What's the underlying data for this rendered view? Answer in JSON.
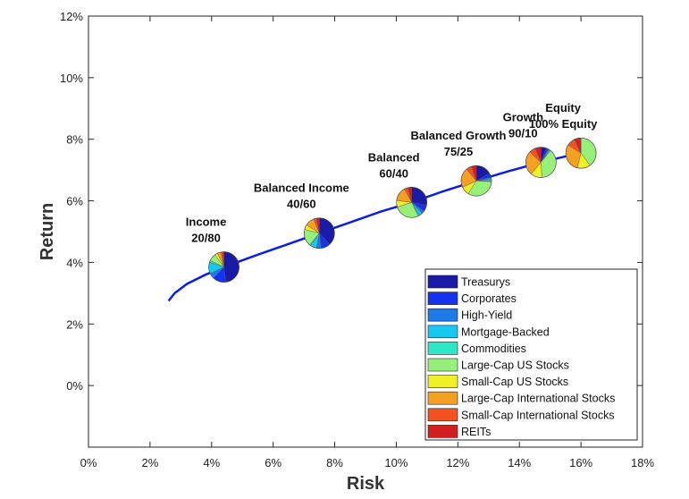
{
  "chart_data": {
    "type": "scatter",
    "xlabel": "Risk",
    "ylabel": "Return",
    "xlim": [
      0,
      18
    ],
    "ylim": [
      -2,
      12
    ],
    "x_ticks": [
      "0%",
      "2%",
      "4%",
      "6%",
      "8%",
      "10%",
      "12%",
      "14%",
      "16%",
      "18%"
    ],
    "y_ticks": [
      "0%",
      "2%",
      "4%",
      "6%",
      "8%",
      "10%",
      "12%"
    ],
    "grid": false,
    "legend_position": "bottom-right",
    "frontier": {
      "color": "#0a1ee6",
      "x": [
        2.6,
        2.8,
        3.2,
        3.8,
        4.4,
        5.5,
        6.5,
        7.5,
        8.5,
        9.5,
        10.5,
        11.5,
        12.6,
        13.6,
        14.7,
        15.4,
        16.0
      ],
      "y": [
        2.75,
        3.0,
        3.3,
        3.6,
        3.85,
        4.25,
        4.6,
        4.95,
        5.3,
        5.65,
        5.95,
        6.3,
        6.65,
        6.95,
        7.25,
        7.42,
        7.55
      ]
    },
    "categories": [
      "Treasurys",
      "Corporates",
      "High-Yield",
      "Mortgage-Backed",
      "Commodities",
      "Large-Cap US Stocks",
      "Small-Cap US Stocks",
      "Large-Cap International Stocks",
      "Small-Cap International Stocks",
      "REITs"
    ],
    "colors": [
      "#1a1aa8",
      "#1432f0",
      "#1f7ae8",
      "#19c8f0",
      "#2de8c8",
      "#96f07a",
      "#f0f028",
      "#f5a020",
      "#f55020",
      "#d21e1e"
    ],
    "portfolios": [
      {
        "name": "Income",
        "sub": "20/80",
        "risk": 4.4,
        "return": 3.85,
        "weights": [
          48,
          14,
          6,
          12,
          2,
          8,
          3,
          4,
          2,
          1
        ]
      },
      {
        "name": "Balanced Income",
        "sub": "40/60",
        "risk": 7.5,
        "return": 4.95,
        "weights": [
          38,
          10,
          5,
          7,
          1,
          18,
          5,
          10,
          3,
          3
        ]
      },
      {
        "name": "Balanced",
        "sub": "60/40",
        "risk": 10.5,
        "return": 5.95,
        "weights": [
          28,
          7,
          3,
          4,
          1,
          27,
          7,
          15,
          4,
          4
        ]
      },
      {
        "name": "Balanced Growth",
        "sub": "75/25",
        "risk": 12.6,
        "return": 6.65,
        "weights": [
          17,
          4,
          2,
          2,
          1,
          33,
          9,
          21,
          6,
          5
        ]
      },
      {
        "name": "Growth",
        "sub": "90/10",
        "risk": 14.7,
        "return": 7.25,
        "weights": [
          6,
          2,
          1,
          1,
          1,
          38,
          12,
          26,
          7,
          6
        ]
      },
      {
        "name": "Equity",
        "sub": "100% Equity",
        "risk": 16.0,
        "return": 7.55,
        "weights": [
          0,
          0,
          0,
          0,
          0,
          40,
          14,
          30,
          9,
          7
        ]
      }
    ]
  }
}
